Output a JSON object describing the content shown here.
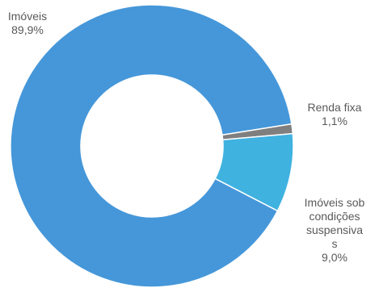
{
  "chart_data": {
    "type": "pie",
    "donut": true,
    "slices": [
      {
        "label": "Renda fixa",
        "value": 1.1,
        "value_label": "1,1%",
        "color": "#7f7f7f"
      },
      {
        "label": "Imóveis sob condições suspensiva s",
        "label_lines": [
          "Imóveis sob",
          "condições",
          "suspensiva",
          "s"
        ],
        "value": 9.0,
        "value_label": "9,0%",
        "color": "#3fb2e0"
      },
      {
        "label": "Imóveis",
        "value": 89.9,
        "value_label": "89,9%",
        "color": "#4597d9"
      }
    ]
  }
}
